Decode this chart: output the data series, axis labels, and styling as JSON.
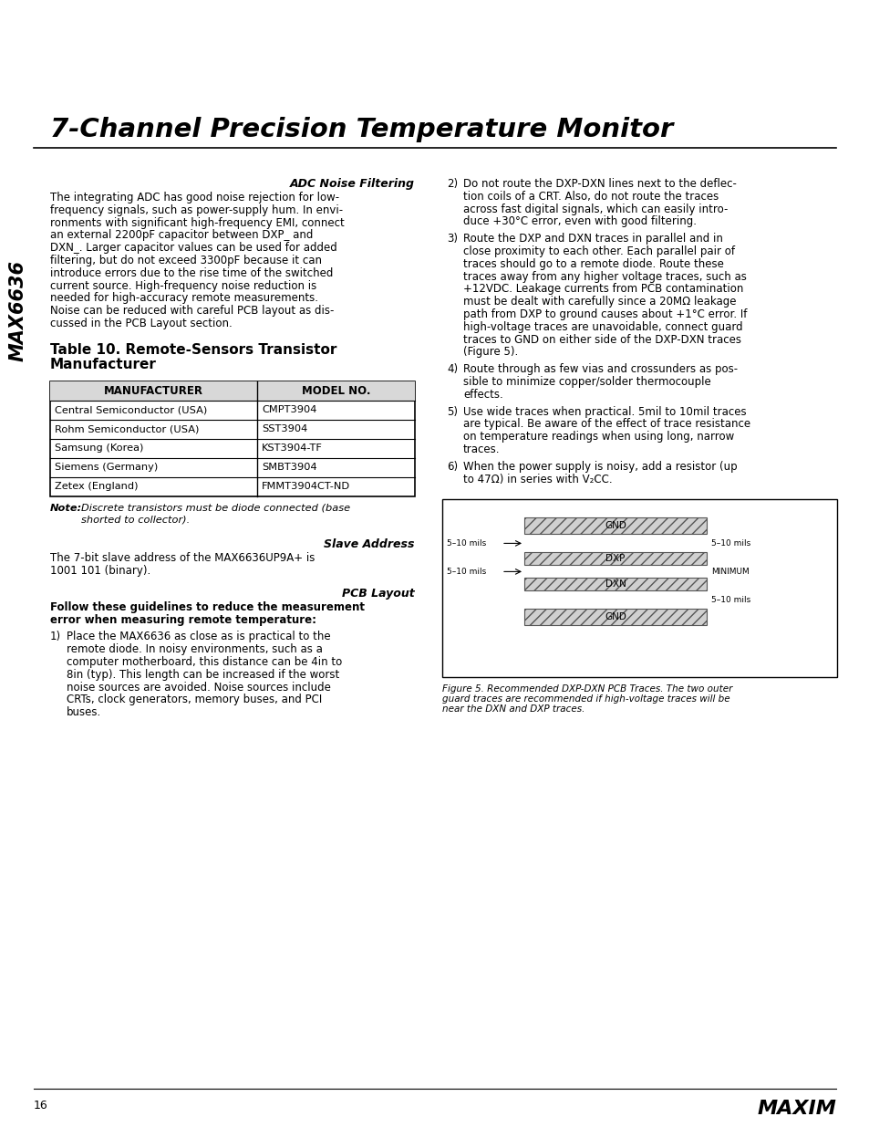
{
  "title": "7-Channel Precision Temperature Monitor",
  "page_bg": "#ffffff",
  "page_number": "16",
  "sidebar_text": "MAX6636",
  "adc_section_title": "ADC Noise Filtering",
  "adc_body_lines": [
    "The integrating ADC has good noise rejection for low-",
    "frequency signals, such as power-supply hum. In envi-",
    "ronments with significant high-frequency EMI, connect",
    "an external 2200pF capacitor between DXP_ and",
    "DXN_. Larger capacitor values can be used for added",
    "filtering, but do not exceed 3300pF because it can",
    "introduce errors due to the rise time of the switched",
    "current source. High-frequency noise reduction is",
    "needed for high-accuracy remote measurements.",
    "Noise can be reduced with careful PCB layout as dis-",
    "cussed in the PCB Layout section."
  ],
  "adc_body_italic_word": "PCB Layout",
  "table_title_line1": "Table 10. Remote-Sensors Transistor",
  "table_title_line2": "Manufacturer",
  "table_headers": [
    "MANUFACTURER",
    "MODEL NO."
  ],
  "table_rows": [
    [
      "Central Semiconductor (USA)",
      "CMPT3904"
    ],
    [
      "Rohm Semiconductor (USA)",
      "SST3904"
    ],
    [
      "Samsung (Korea)",
      "KST3904-TF"
    ],
    [
      "Siemens (Germany)",
      "SMBT3904"
    ],
    [
      "Zetex (England)",
      "FMMT3904CT-ND"
    ]
  ],
  "note_bold": "Note:",
  "note_italic": " Discrete transistors must be diode connected (base shorted to collector).",
  "slave_title": "Slave Address",
  "slave_body_lines": [
    "The 7-bit slave address of the MAX6636UP9A+ is",
    "1001 101 (binary)."
  ],
  "pcb_title": "PCB Layout",
  "pcb_subtitle_lines": [
    "Follow these guidelines to reduce the measurement",
    "error when measuring remote temperature:"
  ],
  "pcb_item1_lines": [
    "Place the MAX6636 as close as is practical to the",
    "remote diode. In noisy environments, such as a",
    "computer motherboard, this distance can be 4in to",
    "8in (typ). This length can be increased if the worst",
    "noise sources are avoided. Noise sources include",
    "CRTs, clock generators, memory buses, and PCI",
    "buses."
  ],
  "pcb_item2_lines": [
    "Do not route the DXP-DXN lines next to the deflec-",
    "tion coils of a CRT. Also, do not route the traces",
    "across fast digital signals, which can easily intro-",
    "duce +30°C error, even with good filtering."
  ],
  "pcb_item3_lines": [
    "Route the DXP and DXN traces in parallel and in",
    "close proximity to each other. Each parallel pair of",
    "traces should go to a remote diode. Route these",
    "traces away from any higher voltage traces, such as",
    "+12VDC. Leakage currents from PCB contamination",
    "must be dealt with carefully since a 20MΩ leakage",
    "path from DXP to ground causes about +1°C error. If",
    "high-voltage traces are unavoidable, connect guard",
    "traces to GND on either side of the DXP-DXN traces",
    "(Figure 5)."
  ],
  "pcb_item4_lines": [
    "Route through as few vias and crossunders as pos-",
    "sible to minimize copper/solder thermocouple",
    "effects."
  ],
  "pcb_item5_lines": [
    "Use wide traces when practical. 5mil to 10mil traces",
    "are typical. Be aware of the effect of trace resistance",
    "on temperature readings when using long, narrow",
    "traces."
  ],
  "pcb_item6_lines": [
    "When the power supply is noisy, add a resistor (up",
    "to 47Ω) in series with V₂CC."
  ],
  "figure_labels": [
    "GND",
    "DXP",
    "DXN",
    "GND"
  ],
  "figure_left_labels": [
    "5–10 mils",
    "5–10 mils"
  ],
  "figure_right_labels": [
    "5–10 mils",
    "MINIMUM",
    "5–10 mils"
  ],
  "figure_caption_lines": [
    "Figure 5. Recommended DXP-DXN PCB Traces. The two outer",
    "guard traces are recommended if high-voltage traces will be",
    "near the DXN and DXP traces."
  ]
}
